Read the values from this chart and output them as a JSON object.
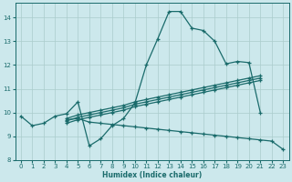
{
  "xlabel": "Humidex (Indice chaleur)",
  "bg_color": "#cce8ec",
  "grid_color": "#aacccc",
  "line_color": "#1a6b6b",
  "xlim": [
    -0.5,
    23.5
  ],
  "ylim": [
    8.0,
    14.6
  ],
  "yticks": [
    8,
    9,
    10,
    11,
    12,
    13,
    14
  ],
  "xticks": [
    0,
    1,
    2,
    3,
    4,
    5,
    6,
    7,
    8,
    9,
    10,
    11,
    12,
    13,
    14,
    15,
    16,
    17,
    18,
    19,
    20,
    21,
    22,
    23
  ],
  "line1_x": [
    0,
    1,
    2,
    3,
    4,
    5,
    6,
    7,
    8,
    9,
    10,
    11,
    12,
    13,
    14,
    15,
    16,
    17,
    18,
    19,
    20,
    21
  ],
  "line1_y": [
    9.85,
    9.45,
    9.55,
    9.85,
    9.95,
    10.45,
    8.6,
    8.9,
    9.45,
    9.75,
    10.4,
    12.0,
    13.1,
    14.25,
    14.25,
    13.55,
    13.45,
    13.0,
    12.05,
    12.15,
    12.1,
    10.0
  ],
  "line2_x": [
    4,
    5,
    6,
    7,
    8,
    9,
    10,
    11,
    12,
    13,
    14,
    15,
    16,
    17,
    18,
    19,
    20,
    21
  ],
  "line2_y": [
    9.75,
    9.9,
    10.0,
    10.1,
    10.2,
    10.3,
    10.45,
    10.55,
    10.65,
    10.75,
    10.85,
    10.95,
    11.05,
    11.15,
    11.25,
    11.35,
    11.45,
    11.55
  ],
  "line3_x": [
    4,
    5,
    6,
    7,
    8,
    9,
    10,
    11,
    12,
    13,
    14,
    15,
    16,
    17,
    18,
    19,
    20,
    21
  ],
  "line3_y": [
    9.65,
    9.8,
    9.9,
    10.0,
    10.1,
    10.2,
    10.35,
    10.45,
    10.55,
    10.65,
    10.75,
    10.85,
    10.95,
    11.05,
    11.15,
    11.25,
    11.35,
    11.45
  ],
  "line4_x": [
    4,
    5,
    6,
    7,
    8,
    9,
    10,
    11,
    12,
    13,
    14,
    15,
    16,
    17,
    18,
    19,
    20,
    21
  ],
  "line4_y": [
    9.55,
    9.7,
    9.8,
    9.9,
    10.0,
    10.1,
    10.25,
    10.35,
    10.45,
    10.55,
    10.65,
    10.75,
    10.85,
    10.95,
    11.05,
    11.15,
    11.25,
    11.35
  ],
  "line5_x": [
    4,
    5,
    6,
    7,
    8,
    9,
    10,
    11,
    12,
    13,
    14,
    15,
    16,
    17,
    18,
    19,
    20,
    21,
    22,
    23
  ],
  "line5_y": [
    9.7,
    9.75,
    9.6,
    9.55,
    9.5,
    9.45,
    9.4,
    9.35,
    9.3,
    9.25,
    9.2,
    9.15,
    9.1,
    9.05,
    9.0,
    8.95,
    8.9,
    8.85,
    8.8,
    8.45
  ]
}
